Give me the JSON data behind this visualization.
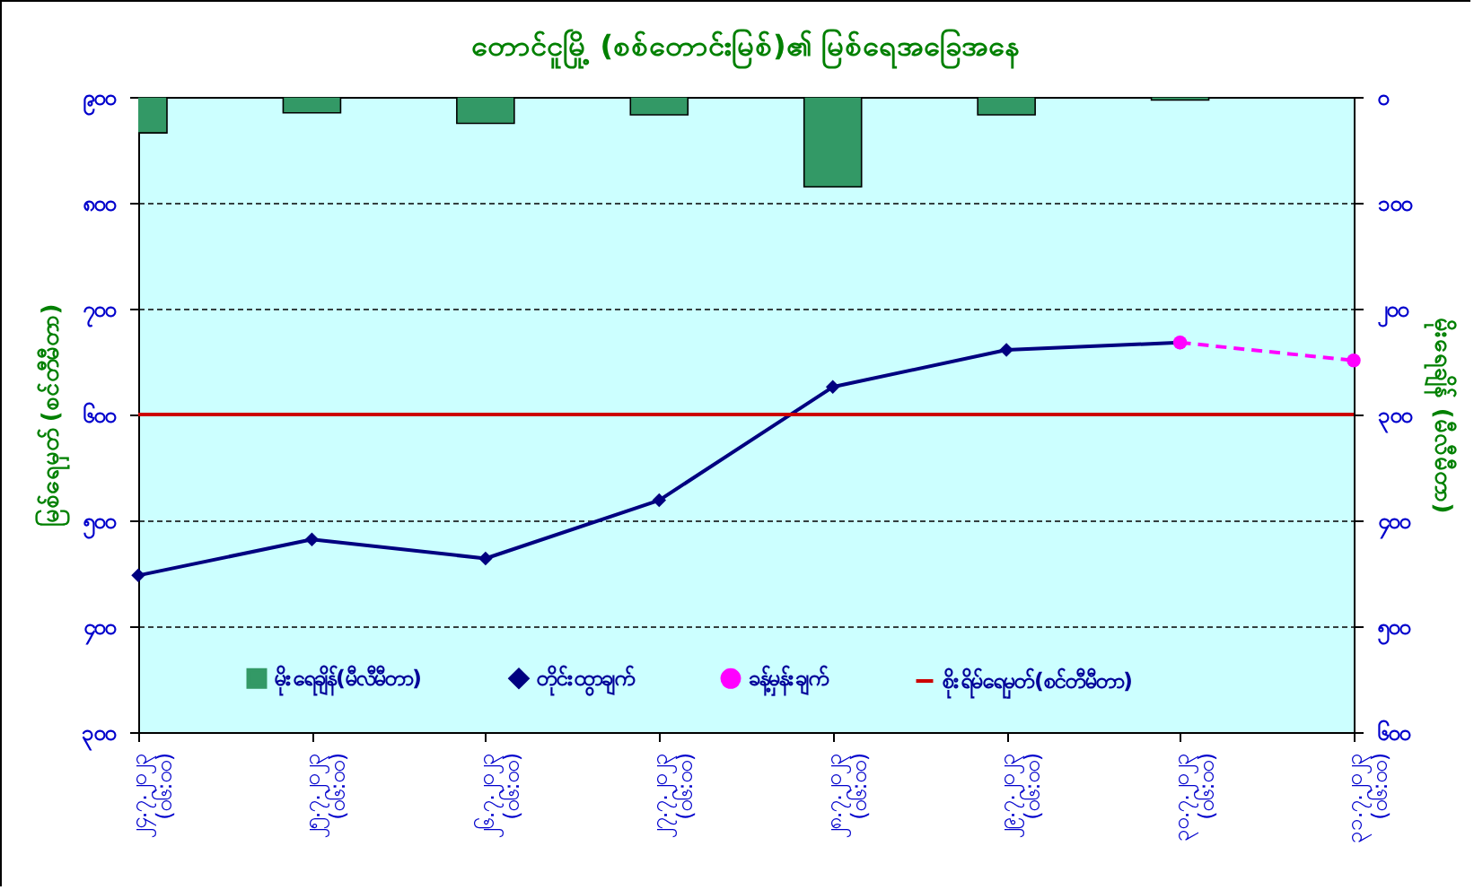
{
  "chart_data": {
    "type": "line",
    "title": "တောင်ငူမြို့ (စစ်တောင်းမြစ်)၏ မြစ်ရေအခြေအနေ",
    "ylabel": "မြစ်ရေမှတ် (စင်တီမီတာ)",
    "y2label": "မိုးရေချိန် (မီလီမီတာ)",
    "categories": [
      "၂၄.၇.၂၀၂၃ (၀၆:၀၀)",
      "၂၅.၇.၂၀၂၃ (၀၆:၀၀)",
      "၂၆.၇.၂၀၂၃ (၀၆:၀၀)",
      "၂၇.၇.၂၀၂၃ (၀၆:၀၀)",
      "၂၈.၇.၂၀၂၃ (၀၆:၀၀)",
      "၂၉.၇.၂၀၂၃ (၀၆:၀၀)",
      "၃၀.၇.၂၀၂၃ (၀၆:၀၀)",
      "၃၁.၇.၂၀၂၃ (၀၆:၀၀)"
    ],
    "series": [
      {
        "name": "မိုးရေချိန်(မီလီမီတာ)",
        "type": "bar",
        "axis": "y2",
        "color": "#339966",
        "values": [
          34,
          15,
          25,
          17,
          85,
          17,
          3,
          null
        ]
      },
      {
        "name": "တိုင်းထွာချက်",
        "color": "#000080",
        "marker": "diamond",
        "line_style": "solid",
        "values": [
          448,
          482,
          464,
          519,
          626,
          661,
          668,
          null
        ]
      },
      {
        "name": "ခန့်မှန်းချက်",
        "color": "#ff00ff",
        "marker": "circle",
        "line_style": "dashed",
        "values": [
          null,
          null,
          null,
          null,
          null,
          null,
          668,
          651
        ]
      }
    ],
    "ylim": [
      300,
      900
    ],
    "yticks": [
      {
        "value": 300,
        "label": "၃၀၀"
      },
      {
        "value": 400,
        "label": "၄၀၀"
      },
      {
        "value": 500,
        "label": "၅၀၀"
      },
      {
        "value": 600,
        "label": "၆၀၀"
      },
      {
        "value": 700,
        "label": "၇၀၀"
      },
      {
        "value": 800,
        "label": "၈၀၀"
      },
      {
        "value": 900,
        "label": "၉၀၀"
      }
    ],
    "y2lim": [
      600,
      0
    ],
    "y2ticks": [
      {
        "value": 0,
        "label": "၀"
      },
      {
        "value": 100,
        "label": "၁၀၀"
      },
      {
        "value": 200,
        "label": "၂၀၀"
      },
      {
        "value": 300,
        "label": "၃၀၀"
      },
      {
        "value": 400,
        "label": "၄၀၀"
      },
      {
        "value": 500,
        "label": "၅၀၀"
      },
      {
        "value": 600,
        "label": "၆၀၀"
      }
    ],
    "ref_lines": [
      {
        "axis": "y",
        "value": 600,
        "label": "စိုးရိမ်ရေမှတ်(စင်တီမီတာ)",
        "color": "#cc0000"
      }
    ],
    "grid": "y",
    "legend": "bottom"
  }
}
